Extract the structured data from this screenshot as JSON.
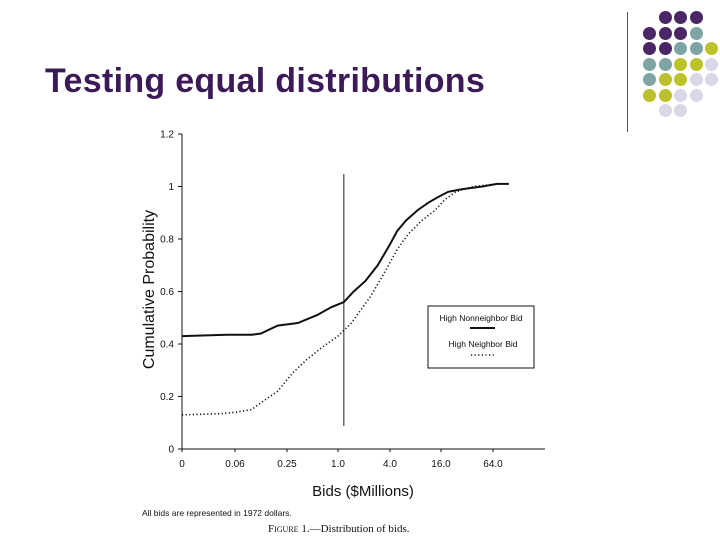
{
  "slide": {
    "title": "Testing equal distributions",
    "decor_colors": {
      "purple": "#4a2666",
      "teal": "#7fa4a6",
      "olive": "#bdc12c",
      "lavender": "#d8d8e6"
    },
    "decor_grid": [
      [
        "none",
        "purple",
        "purple",
        "purple",
        "none"
      ],
      [
        "purple",
        "purple",
        "purple",
        "teal",
        "none"
      ],
      [
        "purple",
        "purple",
        "teal",
        "teal",
        "olive"
      ],
      [
        "teal",
        "teal",
        "olive",
        "olive",
        "lavender"
      ],
      [
        "teal",
        "olive",
        "olive",
        "lavender",
        "lavender"
      ],
      [
        "olive",
        "olive",
        "lavender",
        "lavender",
        "none"
      ],
      [
        "none",
        "lavender",
        "lavender",
        "none",
        "none"
      ]
    ]
  },
  "chart_data": {
    "type": "line",
    "title": "",
    "ylabel": "Cumulative Probability",
    "xlabel": "Bids ($Millions)",
    "x_ticks": [
      "0",
      "0.06",
      "0.25",
      "1.0",
      "4.0",
      "16.0",
      "64.0"
    ],
    "y_ticks": [
      "0",
      "0.2",
      "0.4",
      "0.6",
      "0.8",
      "1",
      "1.2"
    ],
    "ylim": [
      0,
      1.2
    ],
    "x_scale": "quartic-root (equally spaced ticks)",
    "x_range": [
      0,
      90
    ],
    "vertical_line_x": 1.2,
    "legend_position": "right",
    "series": [
      {
        "name": "High Nonneighbor Bid",
        "style": "solid",
        "points": [
          [
            0,
            0.43
          ],
          [
            0.03,
            0.435
          ],
          [
            0.1,
            0.435
          ],
          [
            0.13,
            0.44
          ],
          [
            0.2,
            0.47
          ],
          [
            0.35,
            0.48
          ],
          [
            0.6,
            0.51
          ],
          [
            0.85,
            0.54
          ],
          [
            1.2,
            0.56
          ],
          [
            1.6,
            0.6
          ],
          [
            2.2,
            0.64
          ],
          [
            3.0,
            0.7
          ],
          [
            4.0,
            0.78
          ],
          [
            5.0,
            0.83
          ],
          [
            6.5,
            0.87
          ],
          [
            9.0,
            0.91
          ],
          [
            12.0,
            0.94
          ],
          [
            15.0,
            0.96
          ],
          [
            20.0,
            0.98
          ],
          [
            30.0,
            0.99
          ],
          [
            50.0,
            1.0
          ],
          [
            70.0,
            1.01
          ],
          [
            90.0,
            1.01
          ]
        ]
      },
      {
        "name": "High Neighbor Bid",
        "style": "dotted",
        "points": [
          [
            0,
            0.13
          ],
          [
            0.02,
            0.135
          ],
          [
            0.06,
            0.14
          ],
          [
            0.1,
            0.15
          ],
          [
            0.15,
            0.19
          ],
          [
            0.2,
            0.22
          ],
          [
            0.3,
            0.29
          ],
          [
            0.45,
            0.34
          ],
          [
            0.7,
            0.39
          ],
          [
            1.0,
            0.43
          ],
          [
            1.5,
            0.48
          ],
          [
            2.5,
            0.58
          ],
          [
            3.5,
            0.67
          ],
          [
            5.0,
            0.76
          ],
          [
            7.0,
            0.82
          ],
          [
            10.0,
            0.87
          ],
          [
            14.0,
            0.91
          ],
          [
            18.0,
            0.95
          ],
          [
            25.0,
            0.98
          ],
          [
            40.0,
            1.0
          ],
          [
            70.0,
            1.01
          ],
          [
            90.0,
            1.01
          ]
        ]
      }
    ],
    "note": "All bids are represented in 1972 dollars.",
    "caption_prefix": "Figure",
    "caption_rest": " 1.—Distribution of bids."
  }
}
